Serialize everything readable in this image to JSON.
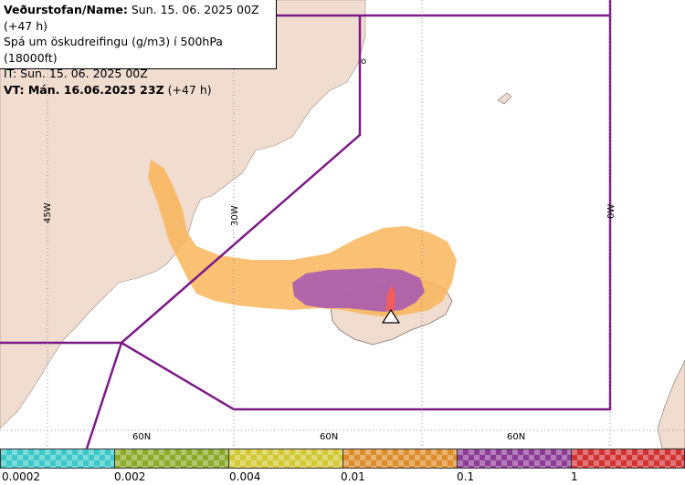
{
  "header": {
    "line1_label": "Veðurstofan/Name:",
    "line1_value": "Sun. 15. 06. 2025 00Z (+47 h)",
    "line2": "Spá um öskudreifingu (g/m3) í 500hPa (18000ft)",
    "line3": "IT: Sun. 15. 06. 2025 00Z",
    "line4_label": "VT: Mán. 16.06.2025 23Z",
    "line4_value": "(+47 h)"
  },
  "map_labels": {
    "lon_45w": "45W",
    "lon_30w": "30W",
    "lon_0w": "0W",
    "lat_60n": "60N",
    "small_o": "o"
  },
  "legend": {
    "ticks": [
      "0.0002",
      "0.002",
      "0.004",
      "0.01",
      "0.1",
      "1"
    ],
    "colors": [
      "#3cc8c8",
      "#8caa28",
      "#d2c832",
      "#dc8c28",
      "#8c3c96",
      "#d23232"
    ]
  },
  "colors": {
    "sea": "#ffffff",
    "land": "#f1ddd0",
    "ash_light": "#f9b55a",
    "ash_medium": "#a85cb0",
    "ash_high": "#ef5d5d",
    "fir_boundary": "#7b1a86"
  }
}
